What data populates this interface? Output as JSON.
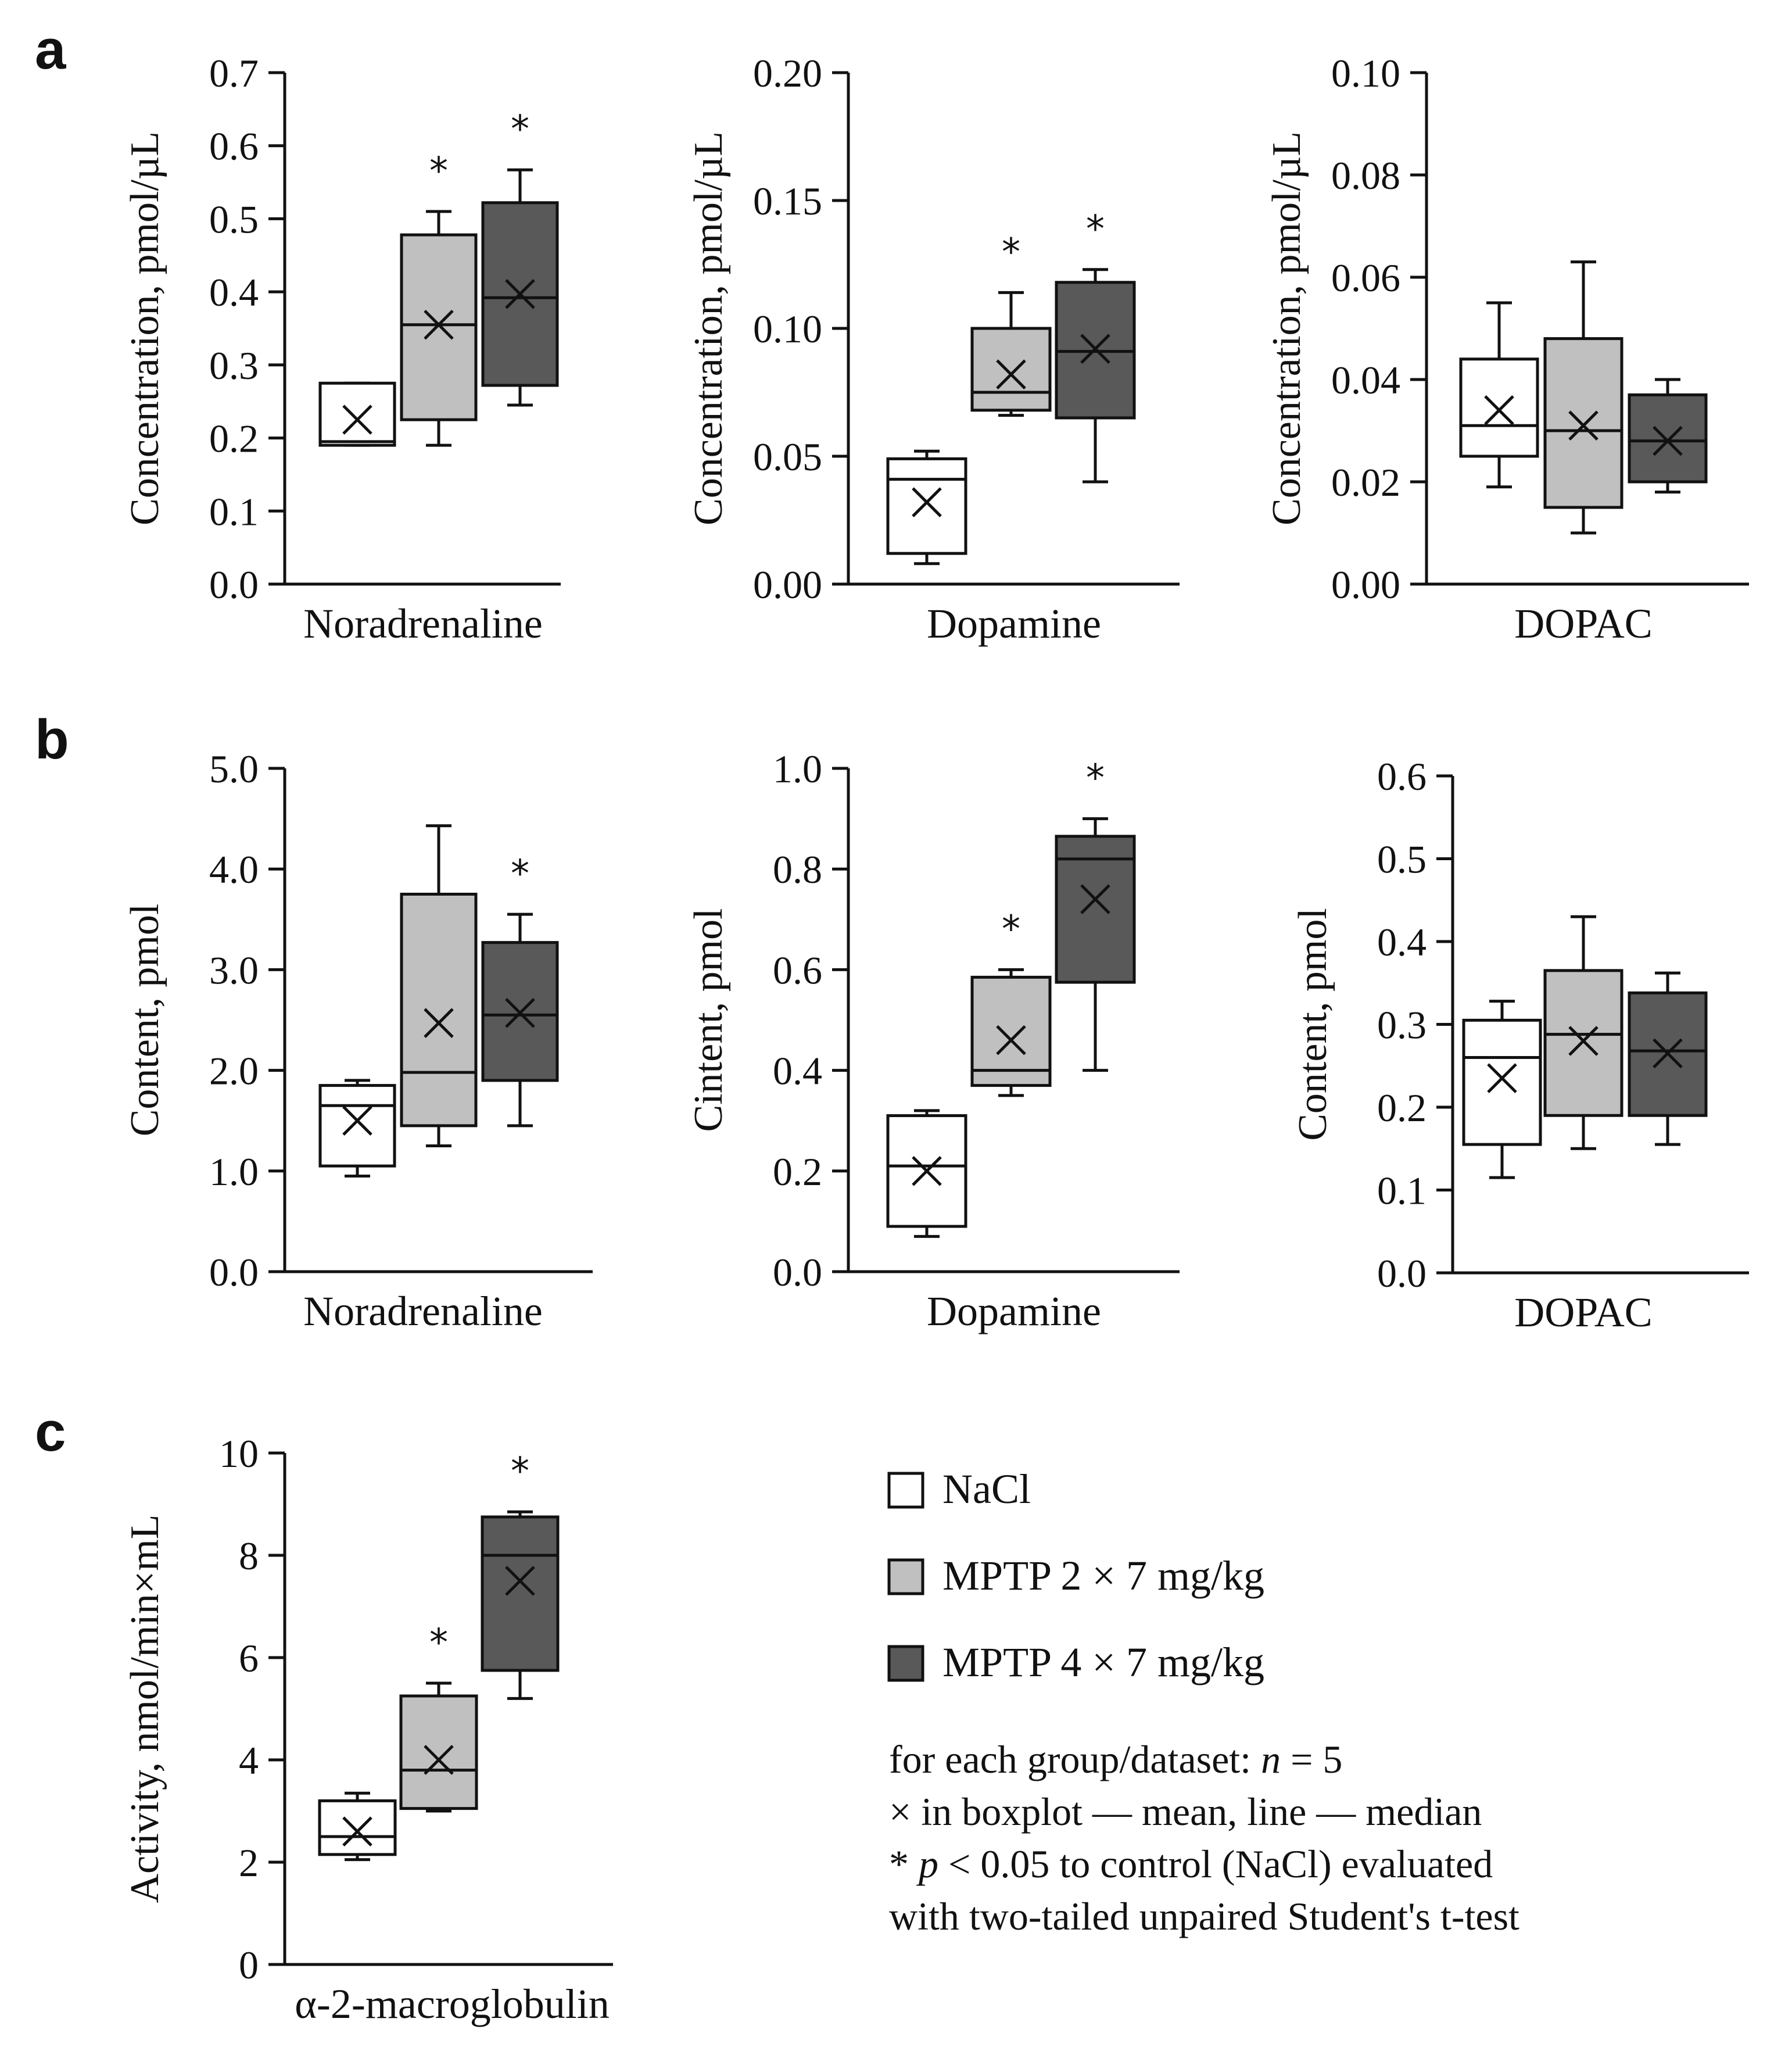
{
  "colors": {
    "nacl": "#ffffff",
    "mptp2": "#c0c0c0",
    "mptp4": "#595959",
    "stroke": "#111111"
  },
  "panel_labels": [
    "a",
    "b",
    "c"
  ],
  "legend": {
    "items": [
      {
        "label": "NaCl",
        "color": "#ffffff"
      },
      {
        "label": "MPTP 2 × 7 mg/kg",
        "color": "#c0c0c0"
      },
      {
        "label": "MPTP 4 × 7 mg/kg",
        "color": "#595959"
      }
    ]
  },
  "notes": {
    "line1_prefix": "for each group/dataset: ",
    "line1_n": "n",
    "line1_suffix": " = 5",
    "line2": "× in boxplot — mean, line — median",
    "line3_prefix": "* ",
    "line3_p": "p",
    "line3_suffix": " < 0.05 to control (NaCl) evaluated",
    "line4": "with two-tailed unpaired Student's t-test"
  },
  "chart_data": [
    {
      "id": "a1",
      "panel": "a",
      "type": "box",
      "xlabel": "Noradrenaline",
      "ylabel": "Concentration, pmol/µL",
      "ylim": [
        0,
        0.7
      ],
      "yticks": [
        "0.0",
        "0.1",
        "0.2",
        "0.3",
        "0.4",
        "0.5",
        "0.6",
        "0.7"
      ],
      "groups": [
        {
          "name": "NaCl",
          "min": 0.19,
          "q1": 0.19,
          "median": 0.195,
          "q3": 0.275,
          "max": 0.275,
          "mean": 0.225,
          "sig": false
        },
        {
          "name": "MPTP 2 × 7 mg/kg",
          "min": 0.19,
          "q1": 0.225,
          "median": 0.355,
          "q3": 0.478,
          "max": 0.51,
          "mean": 0.355,
          "sig": true
        },
        {
          "name": "MPTP 4 × 7 mg/kg",
          "min": 0.245,
          "q1": 0.272,
          "median": 0.392,
          "q3": 0.522,
          "max": 0.567,
          "mean": 0.397,
          "sig": true
        }
      ]
    },
    {
      "id": "a2",
      "panel": "a",
      "type": "box",
      "xlabel": "Dopamine",
      "ylabel": "Concentration, pmol/µL",
      "ylim": [
        0,
        0.2
      ],
      "yticks": [
        "0.00",
        "0.05",
        "0.10",
        "0.15",
        "0.20"
      ],
      "groups": [
        {
          "name": "NaCl",
          "min": 0.008,
          "q1": 0.012,
          "median": 0.041,
          "q3": 0.049,
          "max": 0.052,
          "mean": 0.032,
          "sig": false
        },
        {
          "name": "MPTP 2 × 7 mg/kg",
          "min": 0.066,
          "q1": 0.068,
          "median": 0.075,
          "q3": 0.1,
          "max": 0.114,
          "mean": 0.082,
          "sig": true
        },
        {
          "name": "MPTP 4 × 7 mg/kg",
          "min": 0.04,
          "q1": 0.065,
          "median": 0.091,
          "q3": 0.118,
          "max": 0.123,
          "mean": 0.092,
          "sig": true
        }
      ]
    },
    {
      "id": "a3",
      "panel": "a",
      "type": "box",
      "xlabel": "DOPAC",
      "ylabel": "Concentration, pmol/µL",
      "ylim": [
        0,
        0.1
      ],
      "yticks": [
        "0.00",
        "0.02",
        "0.04",
        "0.06",
        "0.08",
        "0.10"
      ],
      "groups": [
        {
          "name": "NaCl",
          "min": 0.019,
          "q1": 0.025,
          "median": 0.031,
          "q3": 0.044,
          "max": 0.055,
          "mean": 0.034,
          "sig": false
        },
        {
          "name": "MPTP 2 × 7 mg/kg",
          "min": 0.01,
          "q1": 0.015,
          "median": 0.03,
          "q3": 0.048,
          "max": 0.063,
          "mean": 0.031,
          "sig": false
        },
        {
          "name": "MPTP 4 × 7 mg/kg",
          "min": 0.018,
          "q1": 0.02,
          "median": 0.028,
          "q3": 0.037,
          "max": 0.04,
          "mean": 0.028,
          "sig": false
        }
      ]
    },
    {
      "id": "b1",
      "panel": "b",
      "type": "box",
      "xlabel": "Noradrenaline",
      "ylabel": "Content, pmol",
      "ylim": [
        0,
        5
      ],
      "yticks": [
        "0.0",
        "1.0",
        "2.0",
        "3.0",
        "4.0",
        "5.0"
      ],
      "groups": [
        {
          "name": "NaCl",
          "min": 0.95,
          "q1": 1.05,
          "median": 1.65,
          "q3": 1.85,
          "max": 1.9,
          "mean": 1.5,
          "sig": false
        },
        {
          "name": "MPTP 2 × 7 mg/kg",
          "min": 1.25,
          "q1": 1.45,
          "median": 1.98,
          "q3": 3.75,
          "max": 4.43,
          "mean": 2.47,
          "sig": false
        },
        {
          "name": "MPTP 4 × 7 mg/kg",
          "min": 1.45,
          "q1": 1.9,
          "median": 2.55,
          "q3": 3.27,
          "max": 3.55,
          "mean": 2.57,
          "sig": true
        }
      ]
    },
    {
      "id": "b2",
      "panel": "b",
      "type": "box",
      "xlabel": "Dopamine",
      "ylabel": "Cintent, pmol",
      "ylim": [
        0,
        1
      ],
      "yticks": [
        "0.0",
        "0.2",
        "0.4",
        "0.6",
        "0.8",
        "1.0"
      ],
      "groups": [
        {
          "name": "NaCl",
          "min": 0.07,
          "q1": 0.09,
          "median": 0.21,
          "q3": 0.31,
          "max": 0.32,
          "mean": 0.2,
          "sig": false
        },
        {
          "name": "MPTP 2 × 7 mg/kg",
          "min": 0.35,
          "q1": 0.37,
          "median": 0.4,
          "q3": 0.585,
          "max": 0.6,
          "mean": 0.46,
          "sig": true
        },
        {
          "name": "MPTP 4 × 7 mg/kg",
          "min": 0.4,
          "q1": 0.575,
          "median": 0.82,
          "q3": 0.865,
          "max": 0.9,
          "mean": 0.74,
          "sig": true
        }
      ]
    },
    {
      "id": "b3",
      "panel": "b",
      "type": "box",
      "xlabel": "DOPAC",
      "ylabel": "Content, pmol",
      "ylim": [
        0,
        0.6
      ],
      "yticks": [
        "0.0",
        "0.1",
        "0.2",
        "0.3",
        "0.4",
        "0.5",
        "0.6"
      ],
      "groups": [
        {
          "name": "NaCl",
          "min": 0.115,
          "q1": 0.155,
          "median": 0.26,
          "q3": 0.305,
          "max": 0.328,
          "mean": 0.235,
          "sig": false
        },
        {
          "name": "MPTP 2 × 7 mg/kg",
          "min": 0.15,
          "q1": 0.19,
          "median": 0.288,
          "q3": 0.365,
          "max": 0.43,
          "mean": 0.28,
          "sig": false
        },
        {
          "name": "MPTP 4 × 7 mg/kg",
          "min": 0.155,
          "q1": 0.19,
          "median": 0.268,
          "q3": 0.338,
          "max": 0.362,
          "mean": 0.265,
          "sig": false
        }
      ]
    },
    {
      "id": "c1",
      "panel": "c",
      "type": "box",
      "xlabel": "α-2-macroglobulin",
      "ylabel": "Activity, nmol/min×mL",
      "ylim": [
        0,
        10
      ],
      "yticks": [
        "0",
        "2",
        "4",
        "6",
        "8",
        "10"
      ],
      "groups": [
        {
          "name": "NaCl",
          "min": 2.05,
          "q1": 2.15,
          "median": 2.5,
          "q3": 3.2,
          "max": 3.35,
          "mean": 2.6,
          "sig": false
        },
        {
          "name": "MPTP 2 × 7 mg/kg",
          "min": 3.0,
          "q1": 3.05,
          "median": 3.8,
          "q3": 5.25,
          "max": 5.5,
          "mean": 4.0,
          "sig": true
        },
        {
          "name": "MPTP 4 × 7 mg/kg",
          "min": 5.2,
          "q1": 5.75,
          "median": 8.0,
          "q3": 8.75,
          "max": 8.85,
          "mean": 7.5,
          "sig": true
        }
      ]
    }
  ]
}
